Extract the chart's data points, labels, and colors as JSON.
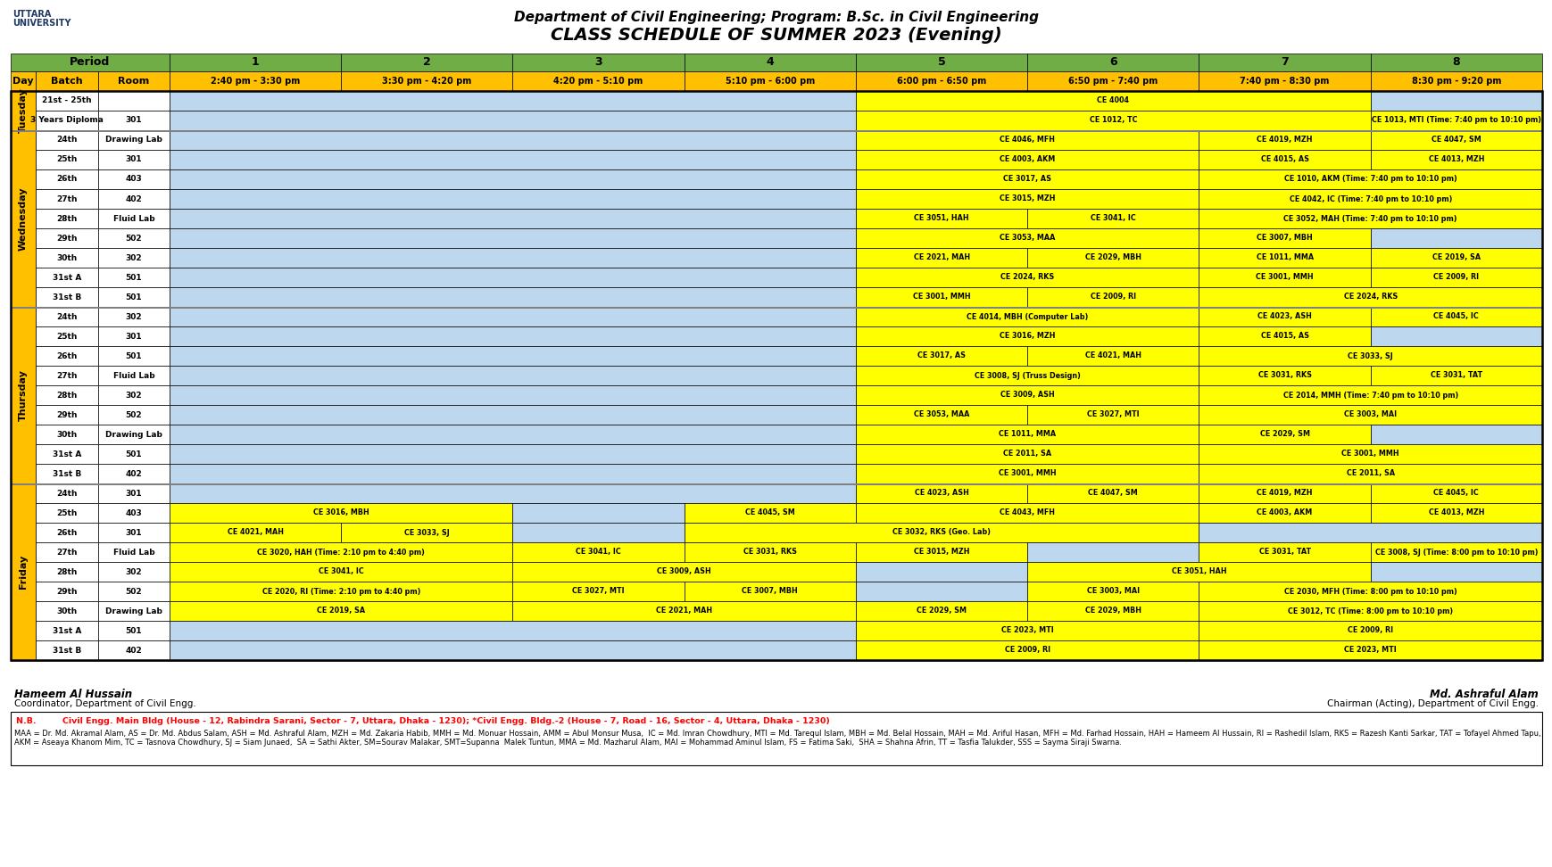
{
  "title1": "Department of Civil Engineering; Program: B.Sc. in Civil Engineering",
  "title2": "CLASS SCHEDULE OF SUMMER 2023 (Evening)",
  "GREEN": "#70AD47",
  "YELLOW": "#FFFF00",
  "ORANGE": "#FFC000",
  "BLUE": "#BDD7EE",
  "WHITE": "#FFFFFF",
  "BLACK": "#000000",
  "GRAY": "#808080",
  "RED": "#FF0000",
  "periods": [
    "1",
    "2",
    "3",
    "4",
    "5",
    "6",
    "7",
    "8"
  ],
  "times": [
    "2:40 pm - 3:30 pm",
    "3:30 pm - 4:20 pm",
    "4:20 pm - 5:10 pm",
    "5:10 pm - 6:00 pm",
    "6:00 pm - 6:50 pm",
    "6:50 pm - 7:40 pm",
    "7:40 pm - 8:30 pm",
    "8:30 pm - 9:20 pm"
  ],
  "signature_left_name": "Hameem Al Hussain",
  "signature_left_title": "Coordinator, Department of Civil Engg.",
  "signature_right_name": "Md. Ashraful Alam",
  "signature_right_title": "Chairman (Acting), Department of Civil Engg.",
  "footnote1": "N.B.         Civil Engg. Main Bldg (House - 12, Rabindra Sarani, Sector - 7, Uttara, Dhaka - 1230); *Civil Engg. Bldg.-2 (House - 7, Road - 16, Sector - 4, Uttara, Dhaka - 1230)",
  "footnote2": "MAA = Dr. Md. Akramal Alam, AS = Dr. Md. Abdus Salam, ASH = Md. Ashraful Alam, MZH = Md. Zakaria Habib, MMH = Md. Monuar Hossain, AMM = Abul Monsur Musa,  IC = Md. Imran Chowdhury, MTI = Md. Tarequl Islam, MBH = Md. Belal Hossain, MAH = Md. Ariful Hasan, MFH = Md. Farhad Hossain, HAH = Hameem Al Hussain, RI = Rashedil Islam, RKS = Razesh Kanti Sarkar, TAT = Tofayel Ahmed Tapu, AKM = Aseaya Khanom Mim, TC = Tasnova Chowdhury, SJ = Siam Junaed,  SA = Sathi Akter, SM=Sourav Malakar, SMT=Supanna  Malek Tuntun, MMA = Md. Mazharul Alam, MAI = Mohammad Aminul Islam, FS = Fatima Saki,  SHA = Shahna Afrin, TT = Tasfia Talukder, SSS = Sayma Siraji Swarna.",
  "tuesday_rows": [
    {
      "batch": "21st - 25th",
      "room": "",
      "cells": [
        [
          "",
          4,
          "B"
        ],
        [
          "CE 4004",
          3,
          "Y"
        ],
        [
          "",
          1,
          "B"
        ]
      ]
    },
    {
      "batch": "3 Years Diploma",
      "room": "301",
      "cells": [
        [
          "",
          4,
          "B"
        ],
        [
          "CE 1012, TC",
          3,
          "Y"
        ],
        [
          "CE 1013, MTI (Time: 7:40 pm to 10:10 pm)",
          1,
          "Y"
        ]
      ]
    }
  ],
  "wednesday_rows": [
    {
      "batch": "24th",
      "room": "Drawing Lab",
      "cells": [
        [
          "",
          4,
          "B"
        ],
        [
          "CE 4046, MFH",
          2,
          "Y"
        ],
        [
          "CE 4019, MZH",
          1,
          "Y"
        ],
        [
          "CE 4047, SM",
          1,
          "Y"
        ]
      ]
    },
    {
      "batch": "25th",
      "room": "301",
      "cells": [
        [
          "",
          4,
          "B"
        ],
        [
          "CE 4003, AKM",
          2,
          "Y"
        ],
        [
          "CE 4015, AS",
          1,
          "Y"
        ],
        [
          "CE 4013, MZH",
          1,
          "Y"
        ]
      ]
    },
    {
      "batch": "26th",
      "room": "403",
      "cells": [
        [
          "",
          4,
          "B"
        ],
        [
          "CE 3017, AS",
          2,
          "Y"
        ],
        [
          "CE 1010, AKM (Time: 7:40 pm to 10:10 pm)",
          2,
          "Y"
        ]
      ]
    },
    {
      "batch": "27th",
      "room": "402",
      "cells": [
        [
          "",
          4,
          "B"
        ],
        [
          "CE 3015, MZH",
          2,
          "Y"
        ],
        [
          "CE 4042, IC (Time: 7:40 pm to 10:10 pm)",
          2,
          "Y"
        ]
      ]
    },
    {
      "batch": "28th",
      "room": "Fluid Lab",
      "cells": [
        [
          "",
          4,
          "B"
        ],
        [
          "CE 3051, HAH",
          1,
          "Y"
        ],
        [
          "CE 3041, IC",
          1,
          "Y"
        ],
        [
          "CE 3052, MAH (Time: 7:40 pm to 10:10 pm)",
          2,
          "Y"
        ]
      ]
    },
    {
      "batch": "29th",
      "room": "502",
      "cells": [
        [
          "",
          4,
          "B"
        ],
        [
          "CE 3053, MAA",
          2,
          "Y"
        ],
        [
          "CE 3007, MBH",
          1,
          "Y"
        ],
        [
          "",
          1,
          "B"
        ]
      ]
    },
    {
      "batch": "30th",
      "room": "302",
      "cells": [
        [
          "",
          4,
          "B"
        ],
        [
          "CE 2021, MAH",
          1,
          "Y"
        ],
        [
          "CE 2029, MBH",
          1,
          "Y"
        ],
        [
          "CE 1011, MMA",
          1,
          "Y"
        ],
        [
          "CE 2019, SA",
          1,
          "Y"
        ]
      ]
    },
    {
      "batch": "31st A",
      "room": "501",
      "cells": [
        [
          "",
          4,
          "B"
        ],
        [
          "CE 2024, RKS",
          2,
          "Y"
        ],
        [
          "CE 3001, MMH",
          1,
          "Y"
        ],
        [
          "CE 2009, RI",
          1,
          "Y"
        ]
      ]
    },
    {
      "batch": "31st B",
      "room": "501",
      "cells": [
        [
          "",
          4,
          "B"
        ],
        [
          "CE 3001, MMH",
          1,
          "Y"
        ],
        [
          "CE 2009, RI",
          1,
          "Y"
        ],
        [
          "CE 2024, RKS",
          2,
          "Y"
        ]
      ]
    }
  ],
  "thursday_rows": [
    {
      "batch": "24th",
      "room": "302",
      "cells": [
        [
          "",
          4,
          "B"
        ],
        [
          "CE 4014, MBH (Computer Lab)",
          2,
          "Y"
        ],
        [
          "CE 4023, ASH",
          1,
          "Y"
        ],
        [
          "CE 4045, IC",
          1,
          "Y"
        ]
      ]
    },
    {
      "batch": "25th",
      "room": "301",
      "cells": [
        [
          "",
          4,
          "B"
        ],
        [
          "CE 3016, MZH",
          2,
          "Y"
        ],
        [
          "CE 4015, AS",
          1,
          "Y"
        ],
        [
          "",
          1,
          "B"
        ]
      ]
    },
    {
      "batch": "26th",
      "room": "501",
      "cells": [
        [
          "",
          4,
          "B"
        ],
        [
          "CE 3017, AS",
          1,
          "Y"
        ],
        [
          "CE 4021, MAH",
          1,
          "Y"
        ],
        [
          "CE 3033, SJ",
          2,
          "Y"
        ]
      ]
    },
    {
      "batch": "27th",
      "room": "Fluid Lab",
      "cells": [
        [
          "",
          4,
          "B"
        ],
        [
          "CE 3008, SJ (Truss Design)",
          2,
          "Y"
        ],
        [
          "CE 3031, RKS",
          1,
          "Y"
        ],
        [
          "CE 3031, TAT",
          1,
          "Y"
        ]
      ]
    },
    {
      "batch": "28th",
      "room": "302",
      "cells": [
        [
          "",
          4,
          "B"
        ],
        [
          "CE 3009, ASH",
          2,
          "Y"
        ],
        [
          "CE 2014, MMH (Time: 7:40 pm to 10:10 pm)",
          2,
          "Y"
        ]
      ]
    },
    {
      "batch": "29th",
      "room": "502",
      "cells": [
        [
          "",
          4,
          "B"
        ],
        [
          "CE 3053, MAA",
          1,
          "Y"
        ],
        [
          "CE 3027, MTI",
          1,
          "Y"
        ],
        [
          "CE 3003, MAI",
          2,
          "Y"
        ]
      ]
    },
    {
      "batch": "30th",
      "room": "Drawing Lab",
      "cells": [
        [
          "",
          4,
          "B"
        ],
        [
          "CE 1011, MMA",
          2,
          "Y"
        ],
        [
          "CE 2029, SM",
          1,
          "Y"
        ],
        [
          "",
          1,
          "B"
        ]
      ]
    },
    {
      "batch": "31st A",
      "room": "501",
      "cells": [
        [
          "",
          4,
          "B"
        ],
        [
          "CE 2011, SA",
          2,
          "Y"
        ],
        [
          "CE 3001, MMH",
          2,
          "Y"
        ]
      ]
    },
    {
      "batch": "31st B",
      "room": "402",
      "cells": [
        [
          "",
          4,
          "B"
        ],
        [
          "CE 3001, MMH",
          2,
          "Y"
        ],
        [
          "CE 2011, SA",
          2,
          "Y"
        ]
      ]
    }
  ],
  "friday_rows": [
    {
      "batch": "24th",
      "room": "301",
      "cells": [
        [
          "",
          4,
          "B"
        ],
        [
          "CE 4023, ASH",
          1,
          "Y"
        ],
        [
          "CE 4047, SM",
          1,
          "Y"
        ],
        [
          "CE 4019, MZH",
          1,
          "Y"
        ],
        [
          "CE 4045, IC",
          1,
          "Y"
        ]
      ]
    },
    {
      "batch": "25th",
      "room": "403",
      "cells": [
        [
          "CE 3016, MBH",
          2,
          "Y"
        ],
        [
          "",
          1,
          "B"
        ],
        [
          "CE 4045, SM",
          1,
          "Y"
        ],
        [
          "CE 4043, MFH",
          2,
          "Y"
        ],
        [
          "CE 4003, AKM",
          1,
          "Y"
        ],
        [
          "CE 4013, MZH",
          1,
          "Y"
        ]
      ]
    },
    {
      "batch": "26th",
      "room": "301",
      "cells": [
        [
          "CE 4021, MAH",
          1,
          "Y"
        ],
        [
          "CE 3033, SJ",
          1,
          "Y"
        ],
        [
          "",
          1,
          "B"
        ],
        [
          "CE 3032, RKS (Geo. Lab)",
          3,
          "Y"
        ],
        [
          "",
          2,
          "B"
        ]
      ]
    },
    {
      "batch": "27th",
      "room": "Fluid Lab",
      "cells": [
        [
          "CE 3020, HAH (Time: 2:10 pm to 4:40 pm)",
          2,
          "Y"
        ],
        [
          "CE 3041, IC",
          1,
          "Y"
        ],
        [
          "CE 3031, RKS",
          1,
          "Y"
        ],
        [
          "CE 3015, MZH",
          1,
          "Y"
        ],
        [
          "",
          1,
          "B"
        ],
        [
          "CE 3031, TAT",
          1,
          "Y"
        ],
        [
          "CE 3008, SJ (Time: 8:00 pm to 10:10 pm)",
          1,
          "Y"
        ]
      ]
    },
    {
      "batch": "28th",
      "room": "302",
      "cells": [
        [
          "CE 3041, IC",
          2,
          "Y"
        ],
        [
          "CE 3009, ASH",
          2,
          "Y"
        ],
        [
          "",
          1,
          "B"
        ],
        [
          "CE 3051, HAH",
          2,
          "Y"
        ],
        [
          "",
          1,
          "B"
        ]
      ]
    },
    {
      "batch": "29th",
      "room": "502",
      "cells": [
        [
          "CE 2020, RI (Time: 2:10 pm to 4:40 pm)",
          2,
          "Y"
        ],
        [
          "CE 3027, MTI",
          1,
          "Y"
        ],
        [
          "CE 3007, MBH",
          1,
          "Y"
        ],
        [
          "",
          1,
          "B"
        ],
        [
          "CE 3003, MAI",
          1,
          "Y"
        ],
        [
          "CE 2030, MFH (Time: 8:00 pm to 10:10 pm)",
          2,
          "Y"
        ]
      ]
    },
    {
      "batch": "30th",
      "room": "Drawing Lab",
      "cells": [
        [
          "CE 2019, SA",
          2,
          "Y"
        ],
        [
          "CE 2021, MAH",
          2,
          "Y"
        ],
        [
          "CE 2029, SM",
          1,
          "Y"
        ],
        [
          "CE 2029, MBH",
          1,
          "Y"
        ],
        [
          "CE 3012, TC (Time: 8:00 pm to 10:10 pm)",
          2,
          "Y"
        ]
      ]
    },
    {
      "batch": "31st A",
      "room": "501",
      "cells": [
        [
          "",
          4,
          "B"
        ],
        [
          "CE 2023, MTI",
          2,
          "Y"
        ],
        [
          "CE 2009, RI",
          2,
          "Y"
        ]
      ]
    },
    {
      "batch": "31st B",
      "room": "402",
      "cells": [
        [
          "",
          4,
          "B"
        ],
        [
          "CE 2009, RI",
          2,
          "Y"
        ],
        [
          "CE 2023, MTI",
          2,
          "Y"
        ]
      ]
    }
  ]
}
